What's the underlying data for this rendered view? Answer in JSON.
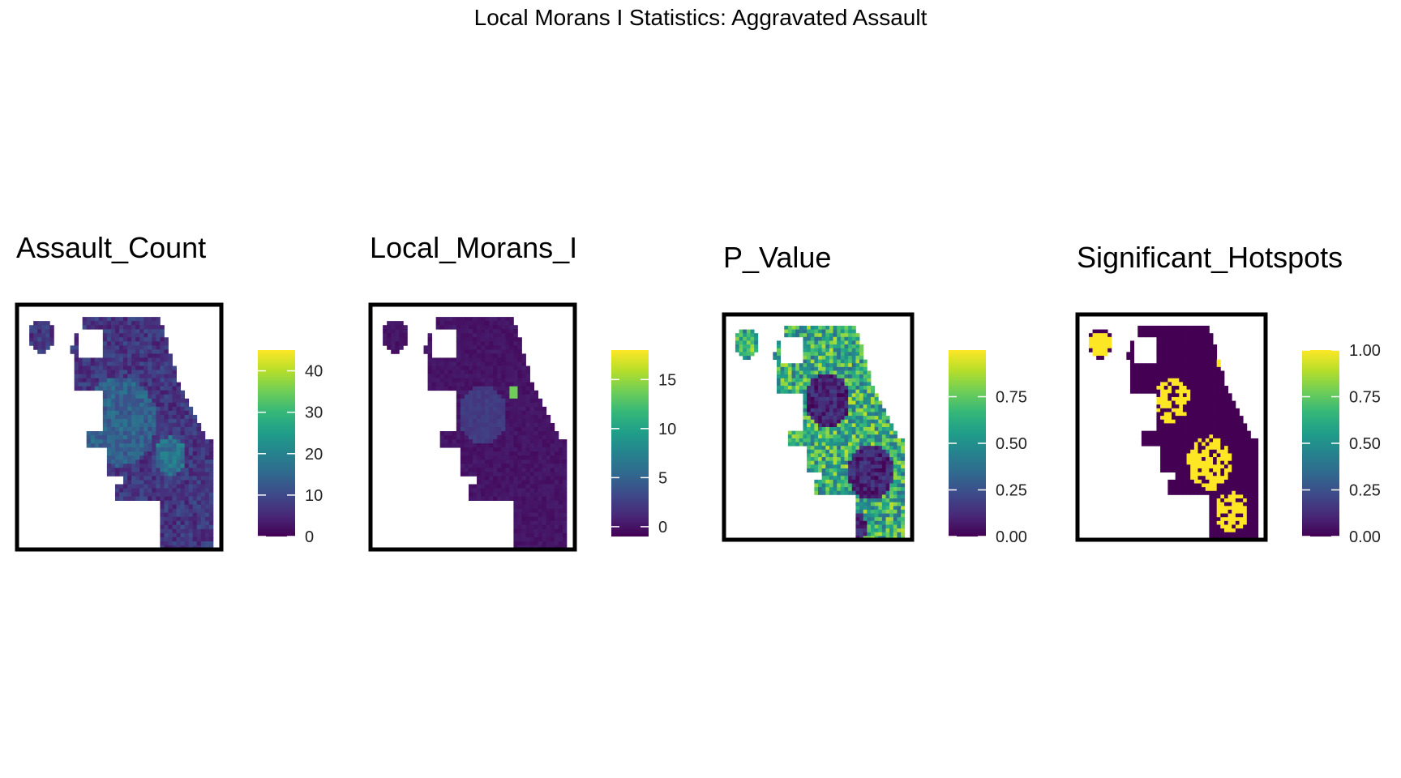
{
  "title": "Local Morans I Statistics: Aggravated Assault",
  "palette": {
    "viridis": [
      "#440154",
      "#482878",
      "#3e4989",
      "#31688e",
      "#26828e",
      "#1f9e89",
      "#35b779",
      "#6ece58",
      "#b5de2b",
      "#fde725"
    ],
    "frame": "#000000",
    "background": "#ffffff"
  },
  "chart_data": [
    {
      "type": "heatmap",
      "title": "Assault_Count",
      "legend_ticks": [
        "0",
        "10",
        "20",
        "30",
        "40"
      ],
      "legend_tick_values": [
        0,
        10,
        20,
        30,
        40
      ],
      "value_range": [
        0,
        45
      ],
      "legend_placement": "right",
      "grid": false
    },
    {
      "type": "heatmap",
      "title": "Local_Morans_I",
      "legend_ticks": [
        "0",
        "5",
        "10",
        "15"
      ],
      "legend_tick_values": [
        0,
        5,
        10,
        15
      ],
      "value_range": [
        -1,
        18
      ],
      "legend_placement": "right",
      "grid": false
    },
    {
      "type": "heatmap",
      "title": "P_Value",
      "legend_ticks": [
        "0.00",
        "0.25",
        "0.50",
        "0.75"
      ],
      "legend_tick_values": [
        0,
        0.25,
        0.5,
        0.75
      ],
      "value_range": [
        0,
        1
      ],
      "legend_placement": "right",
      "grid": false
    },
    {
      "type": "heatmap",
      "title": "Significant_Hotspots",
      "legend_ticks": [
        "0.00",
        "0.25",
        "0.50",
        "0.75",
        "1.00"
      ],
      "legend_tick_values": [
        0,
        0.25,
        0.5,
        0.75,
        1
      ],
      "value_range": [
        0,
        1
      ],
      "legend_placement": "right",
      "grid": false
    }
  ]
}
